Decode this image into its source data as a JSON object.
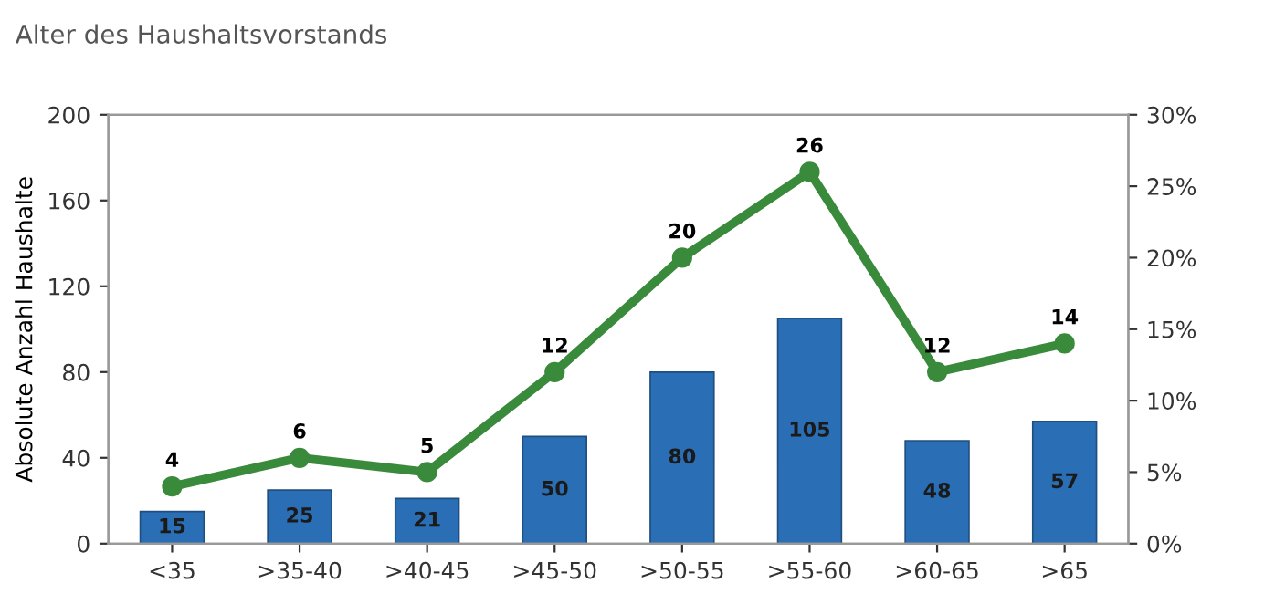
{
  "chart_data": {
    "type": "bar",
    "title": "Alter des Haushaltsvorstands",
    "ylabel": "Absolute Anzahl Haushalte",
    "categories": [
      "<35",
      ">35-40",
      ">40-45",
      ">45-50",
      ">50-55",
      ">55-60",
      ">60-65",
      ">65"
    ],
    "series": [
      {
        "color": "#2a6fb5",
        "values": [
          15,
          25,
          21,
          50,
          80,
          105,
          48,
          57
        ]
      },
      {
        "type": "line",
        "axis": "y2",
        "color": "#3a8a3c",
        "marker": "circle",
        "line_style": "solid",
        "values": [
          4,
          6,
          5,
          12,
          20,
          26,
          12,
          14
        ]
      }
    ],
    "ylim": [
      0,
      200
    ],
    "yticks": [
      0,
      40,
      80,
      120,
      160,
      200
    ],
    "y2lim": [
      0,
      30
    ],
    "y2ticks": [
      {
        "value": 0,
        "label": "0%"
      },
      {
        "value": 5,
        "label": "5%"
      },
      {
        "value": 10,
        "label": "10%"
      },
      {
        "value": 15,
        "label": "15%"
      },
      {
        "value": 20,
        "label": "20%"
      },
      {
        "value": 25,
        "label": "25%"
      },
      {
        "value": 30,
        "label": "30%"
      }
    ],
    "data_labels": true,
    "grid": false,
    "legend": false
  }
}
